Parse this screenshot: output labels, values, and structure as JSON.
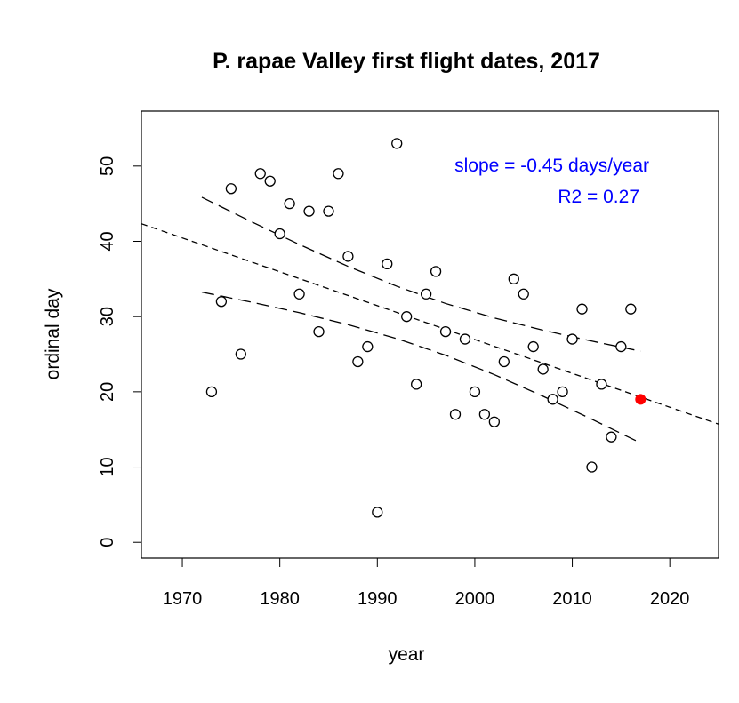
{
  "chart_data": {
    "type": "scatter",
    "title": "P. rapae Valley first flight dates, 2017",
    "xlabel": "year",
    "ylabel": "ordinal day",
    "xlim": [
      1965.8,
      2025.0
    ],
    "ylim": [
      -2.1,
      57.3
    ],
    "xticks": [
      1970,
      1980,
      1990,
      2000,
      2010,
      2020
    ],
    "yticks": [
      0,
      10,
      20,
      30,
      40,
      50
    ],
    "grid": false,
    "points": [
      [
        1973,
        20
      ],
      [
        1974,
        32
      ],
      [
        1975,
        47
      ],
      [
        1976,
        25
      ],
      [
        1978,
        49
      ],
      [
        1979,
        48
      ],
      [
        1980,
        41
      ],
      [
        1981,
        45
      ],
      [
        1982,
        33
      ],
      [
        1983,
        44
      ],
      [
        1984,
        28
      ],
      [
        1985,
        44
      ],
      [
        1986,
        49
      ],
      [
        1987,
        38
      ],
      [
        1988,
        24
      ],
      [
        1989,
        26
      ],
      [
        1990,
        4
      ],
      [
        1991,
        37
      ],
      [
        1992,
        53
      ],
      [
        1993,
        30
      ],
      [
        1994,
        21
      ],
      [
        1995,
        33
      ],
      [
        1996,
        36
      ],
      [
        1997,
        28
      ],
      [
        1998,
        17
      ],
      [
        1999,
        27
      ],
      [
        2000,
        20
      ],
      [
        2001,
        17
      ],
      [
        2002,
        16
      ],
      [
        2003,
        24
      ],
      [
        2004,
        35
      ],
      [
        2005,
        33
      ],
      [
        2006,
        26
      ],
      [
        2007,
        23
      ],
      [
        2008,
        19
      ],
      [
        2009,
        20
      ],
      [
        2010,
        27
      ],
      [
        2011,
        31
      ],
      [
        2012,
        10
      ],
      [
        2013,
        21
      ],
      [
        2014,
        14
      ],
      [
        2015,
        26
      ],
      [
        2016,
        31
      ]
    ],
    "highlight_point": [
      2017,
      19
    ],
    "highlight_color": "#ff0000",
    "regression_line": [
      [
        1965.8,
        42.34
      ],
      [
        2025.0,
        15.7
      ]
    ],
    "confidence_upper": [
      [
        1972,
        45.85
      ],
      [
        1977,
        42.66
      ],
      [
        1982,
        39.58
      ],
      [
        1987,
        36.67
      ],
      [
        1992,
        34.03
      ],
      [
        1997,
        31.74
      ],
      [
        2002,
        29.82
      ],
      [
        2007,
        28.19
      ],
      [
        2012,
        26.74
      ],
      [
        2017,
        25.4
      ]
    ],
    "confidence_lower": [
      [
        1972,
        33.25
      ],
      [
        1977,
        31.94
      ],
      [
        1982,
        30.52
      ],
      [
        1987,
        28.93
      ],
      [
        1992,
        27.07
      ],
      [
        1997,
        24.86
      ],
      [
        2002,
        22.28
      ],
      [
        2007,
        19.41
      ],
      [
        2012,
        16.36
      ],
      [
        2017,
        13.2
      ]
    ],
    "annotations": {
      "slope": "slope = -0.45 days/year",
      "r2": "R2 = 0.27",
      "color": "#0000ff"
    }
  }
}
